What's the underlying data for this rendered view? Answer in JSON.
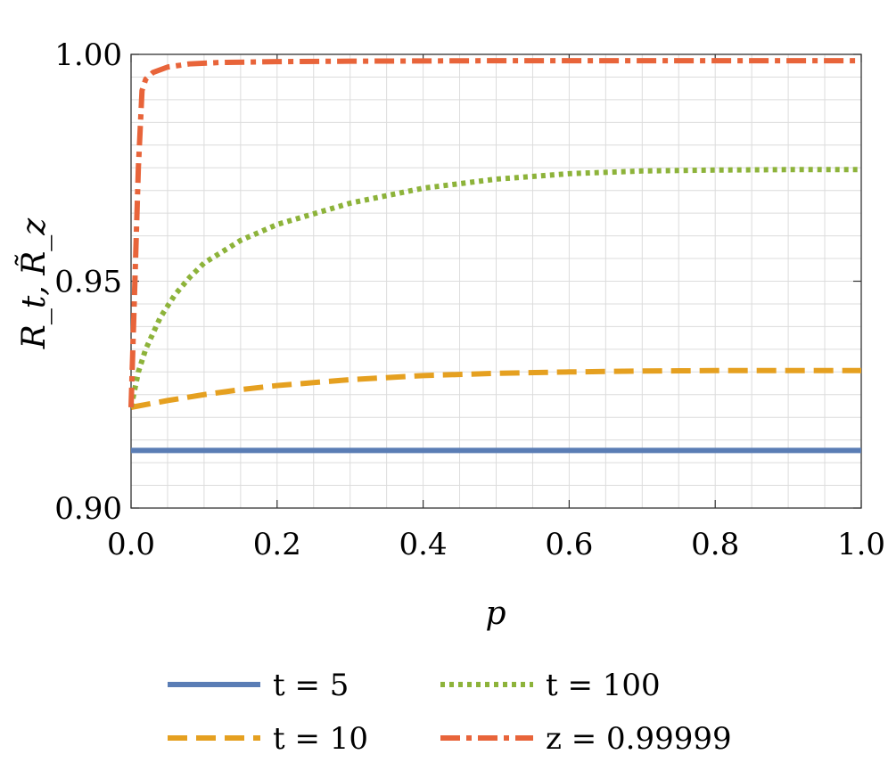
{
  "chart_data": {
    "type": "line",
    "xlabel": "p",
    "ylabel": "R_t, R̃_z",
    "xlim": [
      0.0,
      1.0
    ],
    "ylim": [
      0.9,
      1.0
    ],
    "x_ticks": [
      "0.0",
      "0.2",
      "0.4",
      "0.6",
      "0.8",
      "1.0"
    ],
    "y_ticks": [
      "0.90",
      "0.95",
      "1.00"
    ],
    "grid": true,
    "legend_position": "bottom",
    "series": [
      {
        "name": "t = 5",
        "color": "#5a7db5",
        "style": "solid",
        "x": [
          0.0,
          1.0
        ],
        "y": [
          0.9127,
          0.9127
        ]
      },
      {
        "name": "t = 10",
        "color": "#e5a020",
        "style": "dashed",
        "x": [
          0.0,
          0.05,
          0.1,
          0.15,
          0.2,
          0.3,
          0.4,
          0.5,
          0.6,
          0.7,
          0.8,
          0.9,
          1.0
        ],
        "y": [
          0.9222,
          0.9237,
          0.925,
          0.9261,
          0.927,
          0.9283,
          0.9292,
          0.9297,
          0.93,
          0.9302,
          0.9303,
          0.9303,
          0.9303
        ]
      },
      {
        "name": "t = 100",
        "color": "#8db33a",
        "style": "dotted",
        "x": [
          0.0,
          0.01,
          0.02,
          0.04,
          0.06,
          0.08,
          0.1,
          0.15,
          0.2,
          0.3,
          0.4,
          0.5,
          0.6,
          0.7,
          0.8,
          0.9,
          1.0
        ],
        "y": [
          0.9222,
          0.93,
          0.935,
          0.942,
          0.947,
          0.9508,
          0.954,
          0.959,
          0.9625,
          0.9672,
          0.9705,
          0.9725,
          0.9737,
          0.9743,
          0.9745,
          0.9746,
          0.9746
        ]
      },
      {
        "name": "z = 0.99999",
        "color": "#e8643a",
        "style": "dashdot",
        "x": [
          0.0,
          0.01,
          0.015,
          0.02,
          0.03,
          0.05,
          0.08,
          0.12,
          0.2,
          0.3,
          0.5,
          0.7,
          1.0
        ],
        "y": [
          0.9222,
          0.975,
          0.992,
          0.9945,
          0.996,
          0.9972,
          0.9979,
          0.9982,
          0.9984,
          0.9985,
          0.9986,
          0.9986,
          0.9986
        ]
      }
    ]
  }
}
